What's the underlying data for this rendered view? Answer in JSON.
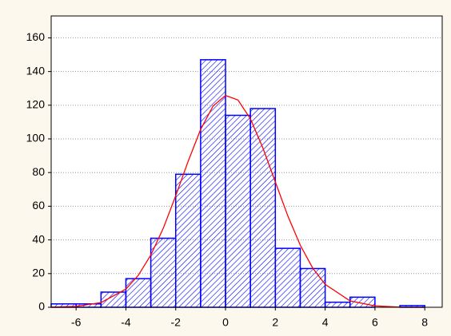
{
  "chart_data": {
    "type": "histogram",
    "bins": [
      -7,
      -6,
      -5,
      -4,
      -3,
      -2,
      -1,
      0,
      1,
      2,
      3,
      4,
      5,
      6,
      7,
      8
    ],
    "values": [
      2,
      2,
      9,
      17,
      41,
      79,
      147,
      114,
      118,
      35,
      23,
      3,
      6,
      0,
      1
    ],
    "color": "#0000ff",
    "curve": {
      "color": "#ff0000",
      "x": [
        -7,
        -6,
        -5,
        -4,
        -3.5,
        -3,
        -2.5,
        -2,
        -1.5,
        -1,
        -0.5,
        0,
        0.5,
        1,
        1.5,
        2,
        2.5,
        3,
        3.5,
        4,
        5,
        6,
        7,
        8
      ],
      "values": [
        0.1,
        0.5,
        2.8,
        10.8,
        19.0,
        31.0,
        46.9,
        66.2,
        86.7,
        105.6,
        119.5,
        125.8,
        123.1,
        111.9,
        94.6,
        74.4,
        54.3,
        36.9,
        23.3,
        13.6,
        3.8,
        0.8,
        0.1,
        0
      ]
    },
    "xlim": [
      -7,
      8.7
    ],
    "xticks": [
      -6,
      -4,
      -2,
      0,
      2,
      4,
      6,
      8
    ],
    "ylim": [
      0,
      173
    ],
    "yticks": [
      0,
      20,
      40,
      60,
      80,
      100,
      120,
      140,
      160
    ],
    "grid": true
  }
}
